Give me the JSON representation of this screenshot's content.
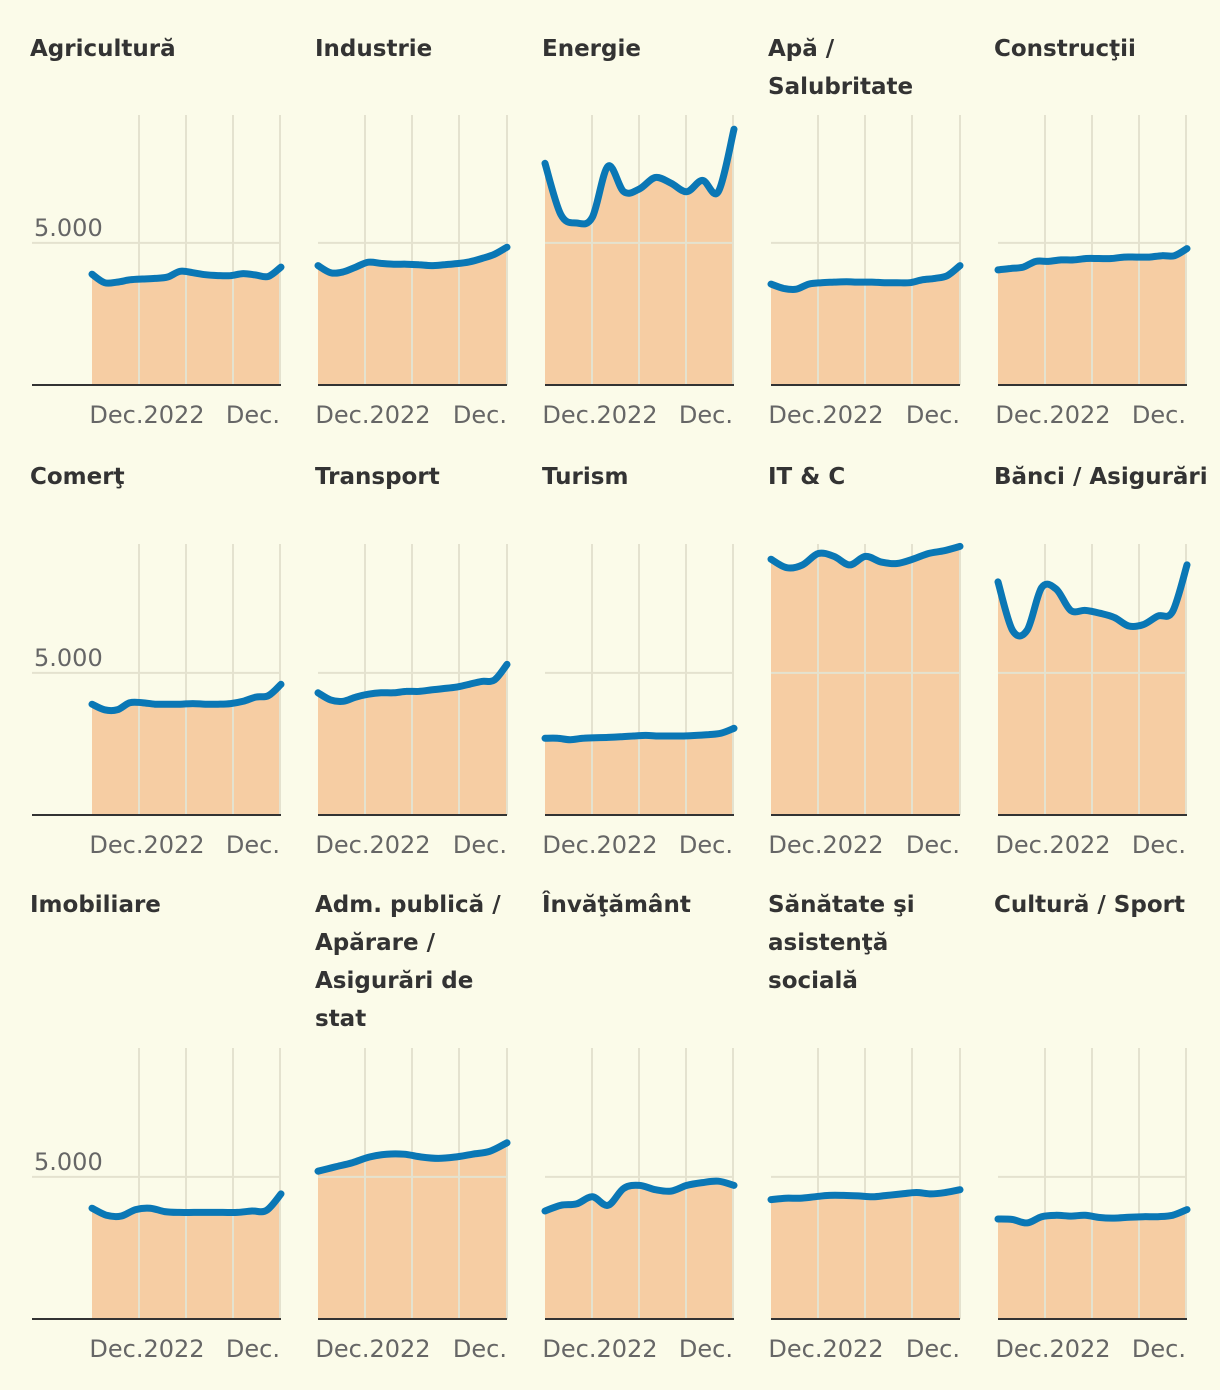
{
  "colors": {
    "background": "#fbfbe9",
    "line": "#0a77b5",
    "area": "#f6cda3",
    "grid": "#e4e2cf",
    "axis": "#333333",
    "tick": "#666666"
  },
  "chart_data": [
    {
      "type": "area",
      "title": "Agricultură",
      "x_tick_labels": [
        "Dec.2022",
        "Dec."
      ],
      "y_tick_labels": [
        "5.000"
      ],
      "ylim": [
        0,
        9500
      ],
      "values": [
        3900,
        3600,
        3620,
        3700,
        3730,
        3750,
        3800,
        4000,
        3950,
        3880,
        3850,
        3850,
        3920,
        3870,
        3820,
        4150
      ]
    },
    {
      "type": "area",
      "title": "Industrie",
      "x_tick_labels": [
        "Dec.2022",
        "Dec."
      ],
      "y_tick_labels": [],
      "ylim": [
        0,
        9500
      ],
      "values": [
        4200,
        3950,
        3980,
        4150,
        4320,
        4280,
        4250,
        4250,
        4230,
        4200,
        4230,
        4270,
        4330,
        4450,
        4600,
        4850
      ]
    },
    {
      "type": "area",
      "title": "Energie",
      "x_tick_labels": [
        "Dec.2022",
        "Dec."
      ],
      "y_tick_labels": [],
      "ylim": [
        0,
        9500
      ],
      "values": [
        7800,
        6000,
        5700,
        5900,
        7700,
        6800,
        6900,
        7300,
        7100,
        6800,
        7200,
        6800,
        9000
      ]
    },
    {
      "type": "area",
      "title": "Apă / Salubritate",
      "x_tick_labels": [
        "Dec.2022",
        "Dec."
      ],
      "y_tick_labels": [],
      "ylim": [
        0,
        9500
      ],
      "values": [
        3550,
        3400,
        3370,
        3550,
        3600,
        3620,
        3630,
        3620,
        3620,
        3600,
        3600,
        3600,
        3700,
        3750,
        3850,
        4200
      ]
    },
    {
      "type": "area",
      "title": "Construcţii",
      "x_tick_labels": [
        "Dec.2022",
        "Dec."
      ],
      "y_tick_labels": [],
      "ylim": [
        0,
        9500
      ],
      "values": [
        4050,
        4100,
        4150,
        4350,
        4350,
        4400,
        4400,
        4450,
        4450,
        4450,
        4500,
        4500,
        4500,
        4550,
        4550,
        4800
      ]
    },
    {
      "type": "area",
      "title": "Comerţ",
      "x_tick_labels": [
        "Dec.2022",
        "Dec."
      ],
      "y_tick_labels": [
        "5.000"
      ],
      "ylim": [
        0,
        9500
      ],
      "values": [
        3900,
        3700,
        3700,
        3950,
        3950,
        3900,
        3900,
        3900,
        3920,
        3900,
        3900,
        3920,
        4000,
        4150,
        4200,
        4600
      ]
    },
    {
      "type": "area",
      "title": "Transport",
      "x_tick_labels": [
        "Dec.2022",
        "Dec."
      ],
      "y_tick_labels": [],
      "ylim": [
        0,
        9500
      ],
      "values": [
        4300,
        4050,
        4000,
        4150,
        4250,
        4300,
        4300,
        4350,
        4350,
        4400,
        4450,
        4500,
        4600,
        4700,
        4750,
        5300
      ]
    },
    {
      "type": "area",
      "title": "Turism",
      "x_tick_labels": [
        "Dec.2022",
        "Dec."
      ],
      "y_tick_labels": [],
      "ylim": [
        0,
        9500
      ],
      "values": [
        2700,
        2700,
        2650,
        2700,
        2720,
        2730,
        2750,
        2780,
        2800,
        2780,
        2780,
        2780,
        2800,
        2830,
        2880,
        3050
      ]
    },
    {
      "type": "area",
      "title": "IT & C",
      "x_tick_labels": [
        "Dec.2022",
        "Dec."
      ],
      "y_tick_labels": [],
      "ylim": [
        0,
        9500
      ],
      "values": [
        9000,
        8700,
        8800,
        9200,
        9100,
        8800,
        9100,
        8900,
        8850,
        9000,
        9200,
        9300,
        9450
      ]
    },
    {
      "type": "area",
      "title": "Bănci / Asigurări",
      "x_tick_labels": [
        "Dec.2022",
        "Dec."
      ],
      "y_tick_labels": [],
      "ylim": [
        0,
        9500
      ],
      "values": [
        8200,
        6500,
        6500,
        8000,
        7950,
        7200,
        7200,
        7100,
        6950,
        6650,
        6700,
        7000,
        7150,
        8800
      ]
    },
    {
      "type": "area",
      "title": "Imobiliare",
      "x_tick_labels": [
        "Dec.2022",
        "Dec."
      ],
      "y_tick_labels": [
        "5.000"
      ],
      "ylim": [
        0,
        9500
      ],
      "values": [
        3900,
        3650,
        3620,
        3850,
        3900,
        3780,
        3750,
        3750,
        3750,
        3750,
        3750,
        3800,
        3820,
        4400
      ]
    },
    {
      "type": "area",
      "title": "Adm. publică / Apărare / Asigurări de stat",
      "x_tick_labels": [
        "Dec.2022",
        "Dec."
      ],
      "y_tick_labels": [],
      "ylim": [
        0,
        9500
      ],
      "values": [
        5200,
        5350,
        5500,
        5700,
        5800,
        5800,
        5700,
        5650,
        5700,
        5800,
        5900,
        6200
      ]
    },
    {
      "type": "area",
      "title": "Învăţământ",
      "x_tick_labels": [
        "Dec.2022",
        "Dec."
      ],
      "y_tick_labels": [],
      "ylim": [
        0,
        9500
      ],
      "values": [
        3800,
        4000,
        4050,
        4300,
        4000,
        4600,
        4700,
        4550,
        4500,
        4700,
        4800,
        4850,
        4700
      ]
    },
    {
      "type": "area",
      "title": "Sănătate şi asistenţă socială",
      "x_tick_labels": [
        "Dec.2022",
        "Dec."
      ],
      "y_tick_labels": [],
      "ylim": [
        0,
        9500
      ],
      "values": [
        4200,
        4250,
        4250,
        4300,
        4350,
        4350,
        4330,
        4300,
        4350,
        4400,
        4450,
        4400,
        4450,
        4550
      ]
    },
    {
      "type": "area",
      "title": "Cultură / Sport",
      "x_tick_labels": [
        "Dec.2022",
        "Dec."
      ],
      "y_tick_labels": [],
      "ylim": [
        0,
        9500
      ],
      "values": [
        3520,
        3500,
        3380,
        3600,
        3650,
        3620,
        3650,
        3570,
        3550,
        3580,
        3600,
        3600,
        3650,
        3850
      ]
    }
  ]
}
